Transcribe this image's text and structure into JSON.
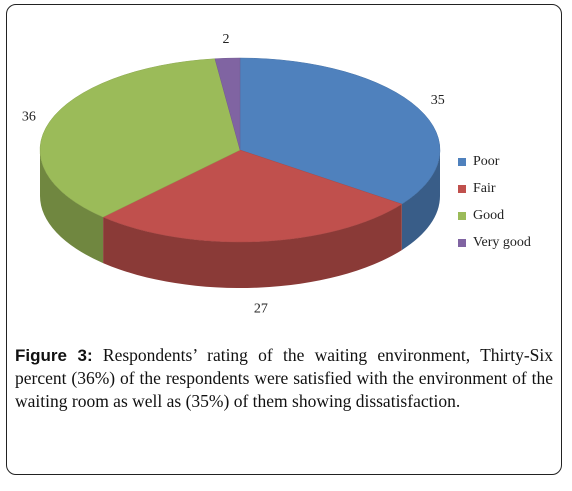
{
  "chart_data": {
    "type": "pie",
    "style": "3d",
    "categories": [
      "Poor",
      "Fair",
      "Good",
      "Very good"
    ],
    "values": [
      35,
      27,
      36,
      2
    ],
    "colors": [
      "#4F81BD",
      "#C0504D",
      "#9BBB59",
      "#8064A2"
    ],
    "legend_position": "right"
  },
  "caption": {
    "label": "Figure 3:",
    "text": "Respondents’ rating of the waiting environment, Thirty-Six percent (36%) of the respondents were satisfied with the environment of the waiting room as well as (35%) of them showing dissatisfaction."
  }
}
